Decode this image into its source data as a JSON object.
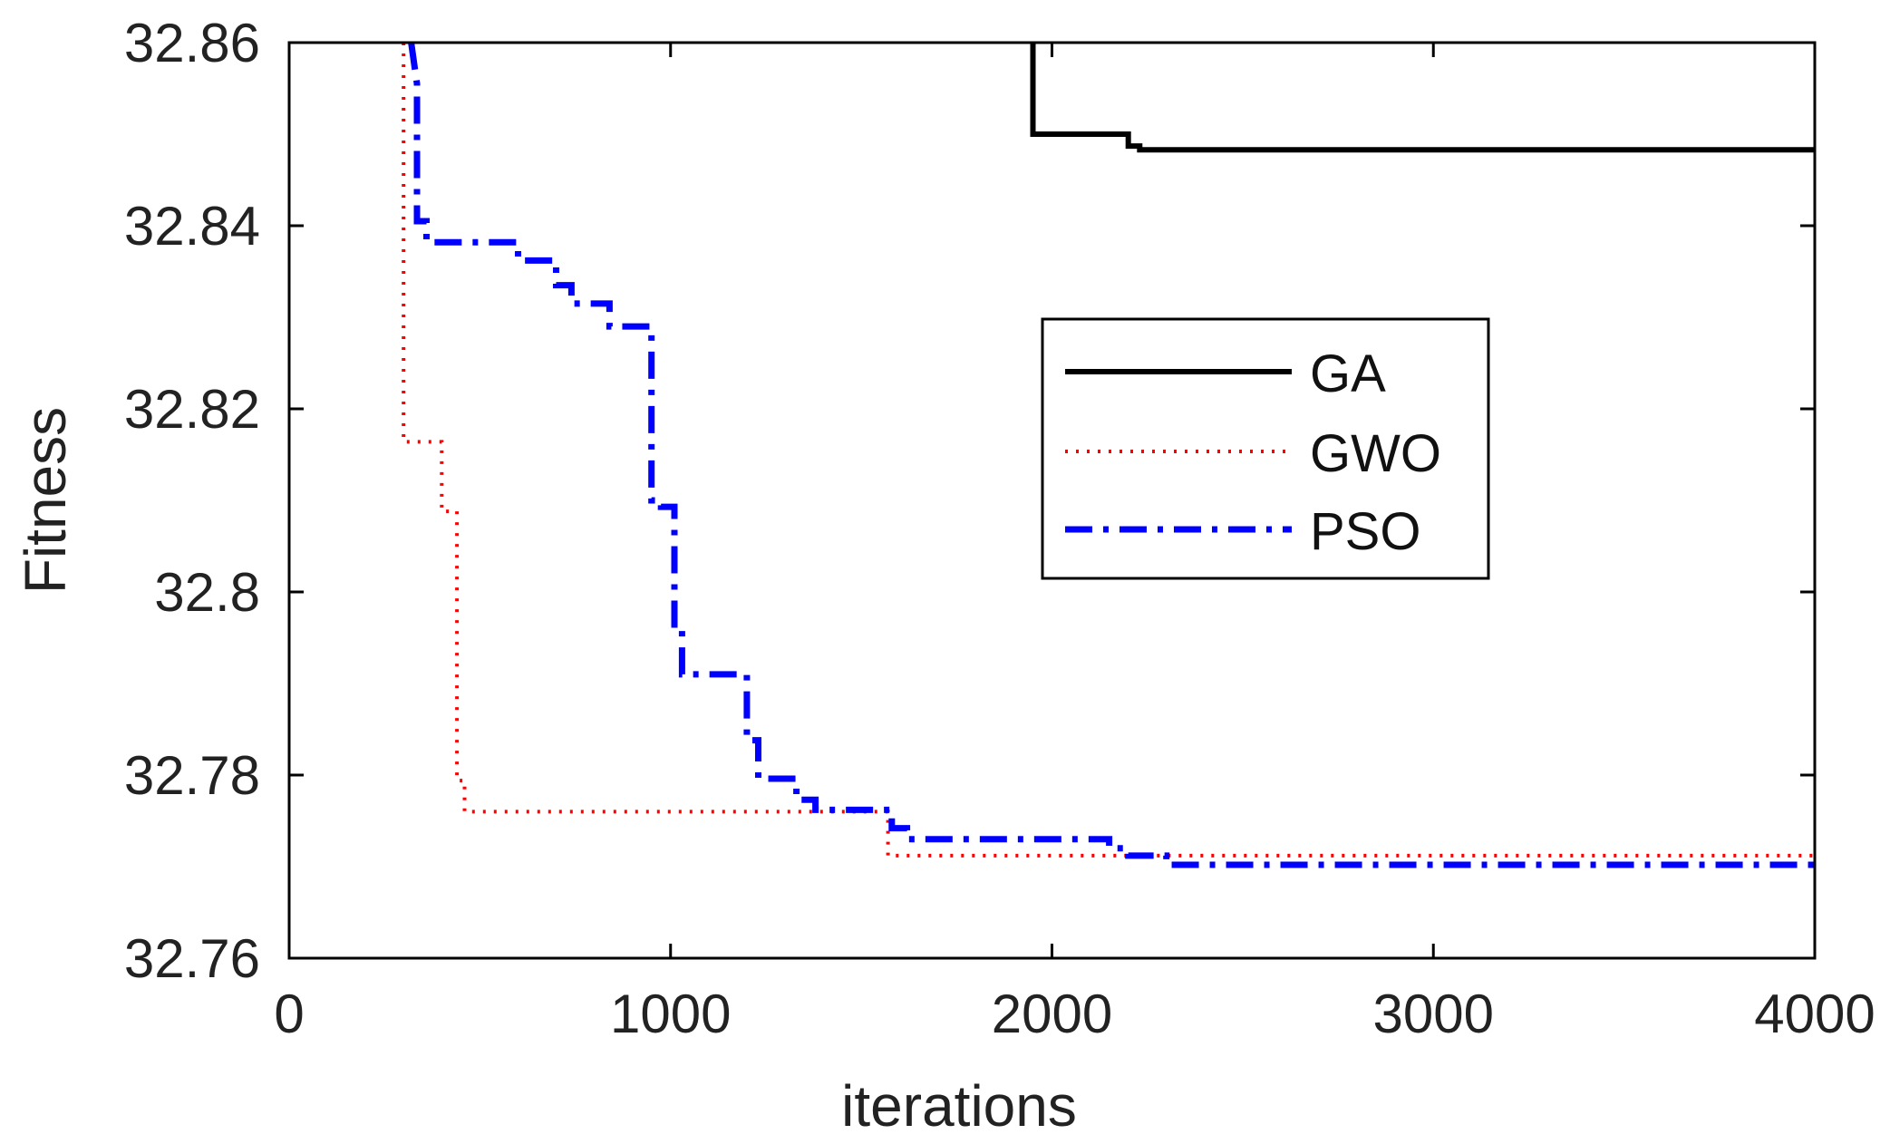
{
  "chart_data": {
    "type": "line",
    "title": "",
    "xlabel": "iterations",
    "ylabel": "Fitness",
    "xlim": [
      0,
      4000
    ],
    "ylim": [
      32.76,
      32.86
    ],
    "x_ticks": [
      0,
      1000,
      2000,
      3000,
      4000
    ],
    "x_tick_labels": [
      "0",
      "1000",
      "2000",
      "3000",
      "4000"
    ],
    "y_ticks": [
      32.76,
      32.78,
      32.8,
      32.82,
      32.84,
      32.86
    ],
    "y_tick_labels": [
      "32.76",
      "32.78",
      "32.8",
      "32.82",
      "32.84",
      "32.86"
    ],
    "grid": false,
    "legend_position": "right-center",
    "series": [
      {
        "name": "GA",
        "color": "#000000",
        "style": "solid",
        "x": [
          1950,
          1950,
          1950,
          2200,
          2200,
          2230,
          2230,
          4000
        ],
        "y": [
          32.86,
          32.86,
          32.85,
          32.85,
          32.8487,
          32.8487,
          32.8483,
          32.8483
        ]
      },
      {
        "name": "GWO",
        "color": "#ff0000",
        "style": "dotted",
        "x": [
          300,
          300,
          300,
          400,
          400,
          440,
          440,
          460,
          460,
          1570,
          1570,
          4000
        ],
        "y": [
          32.86,
          32.86,
          32.8164,
          32.8164,
          32.8088,
          32.8088,
          32.7794,
          32.7794,
          32.776,
          32.776,
          32.7712,
          32.7712
        ],
        "extra_x": [],
        "extra_y": []
      },
      {
        "name": "PSO",
        "color": "#0000ff",
        "style": "dashdot",
        "x": [
          320,
          320,
          335,
          335,
          360,
          360,
          600,
          600,
          700,
          700,
          740,
          740,
          840,
          840,
          950,
          950,
          975,
          975,
          1010,
          1010,
          1030,
          1030,
          1200,
          1200,
          1230,
          1230,
          1330,
          1330,
          1380,
          1380,
          1580,
          1580,
          1620,
          1620,
          2150,
          2150,
          2200,
          2200,
          2300,
          2300,
          4000
        ],
        "y": [
          32.86,
          32.86,
          32.8555,
          32.8405,
          32.8405,
          32.8382,
          32.8382,
          32.8362,
          32.8362,
          32.8335,
          32.8335,
          32.8315,
          32.8315,
          32.829,
          32.829,
          32.81,
          32.81,
          32.8093,
          32.8093,
          32.7958,
          32.7958,
          32.791,
          32.791,
          32.7838,
          32.7838,
          32.7796,
          32.7796,
          32.7773,
          32.7773,
          32.7762,
          32.7762,
          32.7742,
          32.7742,
          32.773,
          32.773,
          32.772,
          32.772,
          32.7712,
          32.7712,
          32.7702,
          32.7702
        ]
      }
    ]
  }
}
